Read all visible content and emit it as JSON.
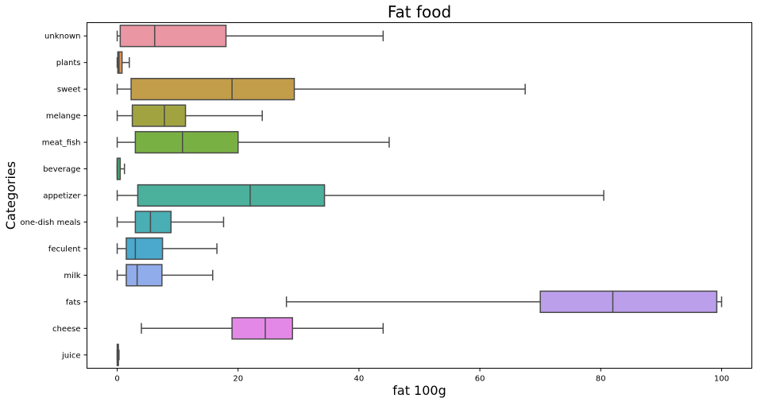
{
  "chart_data": {
    "type": "boxplot",
    "orientation": "horizontal",
    "title": "Fat food",
    "xlabel": "fat 100g",
    "ylabel": "Categories",
    "xlim": [
      -5,
      105
    ],
    "xticks": [
      0,
      20,
      40,
      60,
      80,
      100
    ],
    "grid": false,
    "legend": "none",
    "categories": [
      "unknown",
      "plants",
      "sweet",
      "melange",
      "meat_fish",
      "beverage",
      "appetizer",
      "one-dish meals",
      "feculent",
      "milk",
      "fats",
      "cheese",
      "juice"
    ],
    "boxes": [
      {
        "category": "unknown",
        "whislo": 0,
        "q1": 0.5,
        "med": 6.2,
        "q3": 18,
        "whishi": 44,
        "color": "#ea96a3"
      },
      {
        "category": "plants",
        "whislo": 0,
        "q1": 0.1,
        "med": 0.3,
        "q3": 0.8,
        "whishi": 2,
        "color": "#e09557"
      },
      {
        "category": "sweet",
        "whislo": 0,
        "q1": 2.3,
        "med": 19,
        "q3": 29.3,
        "whishi": 67.5,
        "color": "#c29d4a"
      },
      {
        "category": "melange",
        "whislo": 0,
        "q1": 2.5,
        "med": 7.8,
        "q3": 11.3,
        "whishi": 24,
        "color": "#a1a341"
      },
      {
        "category": "meat_fish",
        "whislo": 0,
        "q1": 3,
        "med": 10.8,
        "q3": 20,
        "whishi": 45,
        "color": "#79b044"
      },
      {
        "category": "beverage",
        "whislo": 0,
        "q1": 0,
        "med": 0,
        "q3": 0.5,
        "whishi": 1.2,
        "color": "#45ab72"
      },
      {
        "category": "appetizer",
        "whislo": 0,
        "q1": 3.4,
        "med": 22,
        "q3": 34.3,
        "whishi": 80.5,
        "color": "#4bb09c"
      },
      {
        "category": "one-dish meals",
        "whislo": 0,
        "q1": 3,
        "med": 5.5,
        "q3": 8.9,
        "whishi": 17.6,
        "color": "#4aaeb5"
      },
      {
        "category": "feculent",
        "whislo": 0,
        "q1": 1.5,
        "med": 3,
        "q3": 7.5,
        "whishi": 16.5,
        "color": "#4aa9cc"
      },
      {
        "category": "milk",
        "whislo": 0,
        "q1": 1.5,
        "med": 3.3,
        "q3": 7.4,
        "whishi": 15.8,
        "color": "#91acea"
      },
      {
        "category": "fats",
        "whislo": 28,
        "q1": 70,
        "med": 82,
        "q3": 99.2,
        "whishi": 100,
        "color": "#bb9feb"
      },
      {
        "category": "cheese",
        "whislo": 4,
        "q1": 19,
        "med": 24.5,
        "q3": 29,
        "whishi": 44,
        "color": "#e488e8"
      },
      {
        "category": "juice",
        "whislo": 0,
        "q1": 0,
        "med": 0.1,
        "q3": 0.2,
        "whishi": 0.3,
        "color": "#f08ec6"
      }
    ]
  }
}
